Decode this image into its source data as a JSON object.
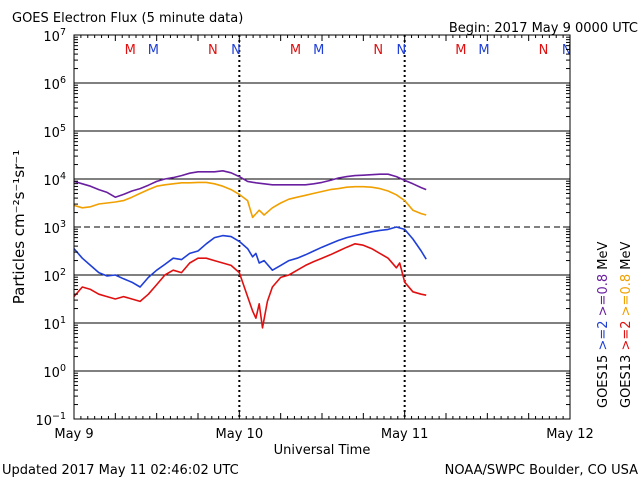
{
  "header": {
    "title": "GOES Electron Flux (5 minute data)",
    "begin": "Begin: 2017 May 9 0000 UTC"
  },
  "footer": {
    "updated": "Updated 2017 May 11 02:46:02 UTC",
    "credit": "NOAA/SWPC Boulder, CO USA"
  },
  "colors": {
    "goes15_2mev": "#1f3fd6",
    "goes13_2mev": "#e01010",
    "goes15_08mev": "#6a1fa0",
    "goes13_08mev": "#f0a000",
    "marker_m": "#e01010",
    "marker_n": "#1f3fd6"
  },
  "chart_data": {
    "type": "line",
    "title": "GOES Electron Flux (5 minute data)",
    "xlabel": "Universal Time",
    "ylabel": "Particles cm⁻²s⁻¹sr⁻¹",
    "x_unit": "days since 2017 May 9 0000 UTC",
    "xlim": [
      0,
      3
    ],
    "ylim_log10": [
      -1,
      7
    ],
    "x_ticks": [
      {
        "x": 0,
        "label": "May 9"
      },
      {
        "x": 1,
        "label": "May 10"
      },
      {
        "x": 2,
        "label": "May 11"
      },
      {
        "x": 3,
        "label": "May 12"
      }
    ],
    "y_ticks": [
      {
        "exp": 7,
        "base": "10",
        "sup": "7"
      },
      {
        "exp": 6,
        "base": "10",
        "sup": "6"
      },
      {
        "exp": 5,
        "base": "10",
        "sup": "5"
      },
      {
        "exp": 4,
        "base": "10",
        "sup": "4"
      },
      {
        "exp": 3,
        "base": "10",
        "sup": "3"
      },
      {
        "exp": 2,
        "base": "10",
        "sup": "2"
      },
      {
        "exp": 1,
        "base": "10",
        "sup": "1"
      },
      {
        "exp": 0,
        "base": "10",
        "sup": "0"
      },
      {
        "exp": -1,
        "base": "10",
        "sup": "−1"
      }
    ],
    "threshold_lines": [
      {
        "log10": 3,
        "style": "dashed"
      }
    ],
    "markers": [
      {
        "x": 0.34,
        "label": "M",
        "satellite": "GOES13"
      },
      {
        "x": 0.48,
        "label": "M",
        "satellite": "GOES15"
      },
      {
        "x": 0.84,
        "label": "N",
        "satellite": "GOES13"
      },
      {
        "x": 0.98,
        "label": "N",
        "satellite": "GOES15"
      },
      {
        "x": 1.34,
        "label": "M",
        "satellite": "GOES13"
      },
      {
        "x": 1.48,
        "label": "M",
        "satellite": "GOES15"
      },
      {
        "x": 1.84,
        "label": "N",
        "satellite": "GOES13"
      },
      {
        "x": 1.98,
        "label": "N",
        "satellite": "GOES15"
      },
      {
        "x": 2.34,
        "label": "M",
        "satellite": "GOES13"
      },
      {
        "x": 2.48,
        "label": "M",
        "satellite": "GOES15"
      },
      {
        "x": 2.84,
        "label": "N",
        "satellite": "GOES13"
      },
      {
        "x": 2.98,
        "label": "N",
        "satellite": "GOES15"
      }
    ],
    "legend": {
      "groups": [
        {
          "satellite": "GOES15",
          "items": [
            {
              "label": ">=2",
              "color": "#1f3fd6"
            },
            {
              "label": ">=0.8",
              "color": "#6a1fa0"
            }
          ]
        },
        {
          "satellite": "GOES13",
          "items": [
            {
              "label": ">=2",
              "color": "#e01010"
            },
            {
              "label": ">=0.8",
              "color": "#f0a000"
            }
          ]
        }
      ],
      "unit": "MeV"
    },
    "series": [
      {
        "name": "GOES15 >=0.8 MeV",
        "color": "#6a1fa0",
        "points": [
          [
            0.0,
            3.95
          ],
          [
            0.05,
            3.9
          ],
          [
            0.1,
            3.85
          ],
          [
            0.15,
            3.78
          ],
          [
            0.2,
            3.72
          ],
          [
            0.25,
            3.62
          ],
          [
            0.3,
            3.68
          ],
          [
            0.35,
            3.75
          ],
          [
            0.4,
            3.8
          ],
          [
            0.45,
            3.87
          ],
          [
            0.5,
            3.95
          ],
          [
            0.55,
            4.0
          ],
          [
            0.6,
            4.03
          ],
          [
            0.65,
            4.07
          ],
          [
            0.7,
            4.12
          ],
          [
            0.75,
            4.15
          ],
          [
            0.8,
            4.15
          ],
          [
            0.85,
            4.15
          ],
          [
            0.9,
            4.17
          ],
          [
            0.95,
            4.13
          ],
          [
            1.0,
            4.05
          ],
          [
            1.05,
            3.95
          ],
          [
            1.1,
            3.92
          ],
          [
            1.15,
            3.9
          ],
          [
            1.2,
            3.88
          ],
          [
            1.25,
            3.88
          ],
          [
            1.3,
            3.88
          ],
          [
            1.35,
            3.88
          ],
          [
            1.4,
            3.88
          ],
          [
            1.45,
            3.9
          ],
          [
            1.5,
            3.93
          ],
          [
            1.55,
            3.97
          ],
          [
            1.6,
            4.02
          ],
          [
            1.65,
            4.05
          ],
          [
            1.7,
            4.07
          ],
          [
            1.75,
            4.08
          ],
          [
            1.8,
            4.09
          ],
          [
            1.85,
            4.1
          ],
          [
            1.9,
            4.1
          ],
          [
            1.95,
            4.05
          ],
          [
            2.0,
            3.97
          ],
          [
            2.05,
            3.9
          ],
          [
            2.1,
            3.82
          ],
          [
            2.13,
            3.78
          ]
        ]
      },
      {
        "name": "GOES13 >=0.8 MeV",
        "color": "#f0a000",
        "points": [
          [
            0.0,
            3.45
          ],
          [
            0.05,
            3.4
          ],
          [
            0.1,
            3.42
          ],
          [
            0.15,
            3.48
          ],
          [
            0.2,
            3.5
          ],
          [
            0.25,
            3.52
          ],
          [
            0.3,
            3.55
          ],
          [
            0.35,
            3.62
          ],
          [
            0.4,
            3.7
          ],
          [
            0.45,
            3.78
          ],
          [
            0.5,
            3.85
          ],
          [
            0.55,
            3.88
          ],
          [
            0.6,
            3.9
          ],
          [
            0.65,
            3.92
          ],
          [
            0.7,
            3.92
          ],
          [
            0.75,
            3.93
          ],
          [
            0.8,
            3.93
          ],
          [
            0.85,
            3.9
          ],
          [
            0.9,
            3.85
          ],
          [
            0.95,
            3.78
          ],
          [
            1.0,
            3.68
          ],
          [
            1.05,
            3.55
          ],
          [
            1.08,
            3.2
          ],
          [
            1.12,
            3.35
          ],
          [
            1.15,
            3.25
          ],
          [
            1.2,
            3.4
          ],
          [
            1.25,
            3.5
          ],
          [
            1.3,
            3.58
          ],
          [
            1.35,
            3.62
          ],
          [
            1.4,
            3.66
          ],
          [
            1.45,
            3.7
          ],
          [
            1.5,
            3.74
          ],
          [
            1.55,
            3.78
          ],
          [
            1.6,
            3.8
          ],
          [
            1.65,
            3.83
          ],
          [
            1.7,
            3.84
          ],
          [
            1.75,
            3.84
          ],
          [
            1.8,
            3.83
          ],
          [
            1.85,
            3.8
          ],
          [
            1.9,
            3.75
          ],
          [
            1.95,
            3.67
          ],
          [
            2.0,
            3.55
          ],
          [
            2.05,
            3.35
          ],
          [
            2.1,
            3.28
          ],
          [
            2.13,
            3.25
          ]
        ]
      },
      {
        "name": "GOES15 >=2 MeV",
        "color": "#1f3fd6",
        "points": [
          [
            0.0,
            2.55
          ],
          [
            0.05,
            2.35
          ],
          [
            0.1,
            2.2
          ],
          [
            0.15,
            2.05
          ],
          [
            0.2,
            1.98
          ],
          [
            0.25,
            2.0
          ],
          [
            0.3,
            1.92
          ],
          [
            0.35,
            1.85
          ],
          [
            0.4,
            1.75
          ],
          [
            0.45,
            1.95
          ],
          [
            0.5,
            2.1
          ],
          [
            0.55,
            2.22
          ],
          [
            0.6,
            2.35
          ],
          [
            0.65,
            2.32
          ],
          [
            0.7,
            2.45
          ],
          [
            0.75,
            2.5
          ],
          [
            0.8,
            2.65
          ],
          [
            0.85,
            2.78
          ],
          [
            0.9,
            2.82
          ],
          [
            0.95,
            2.8
          ],
          [
            1.0,
            2.7
          ],
          [
            1.05,
            2.55
          ],
          [
            1.08,
            2.38
          ],
          [
            1.1,
            2.45
          ],
          [
            1.12,
            2.25
          ],
          [
            1.15,
            2.3
          ],
          [
            1.2,
            2.1
          ],
          [
            1.25,
            2.2
          ],
          [
            1.3,
            2.3
          ],
          [
            1.35,
            2.35
          ],
          [
            1.4,
            2.42
          ],
          [
            1.45,
            2.5
          ],
          [
            1.5,
            2.58
          ],
          [
            1.55,
            2.65
          ],
          [
            1.6,
            2.72
          ],
          [
            1.65,
            2.78
          ],
          [
            1.7,
            2.82
          ],
          [
            1.75,
            2.86
          ],
          [
            1.8,
            2.9
          ],
          [
            1.85,
            2.93
          ],
          [
            1.9,
            2.95
          ],
          [
            1.95,
            3.0
          ],
          [
            2.0,
            2.95
          ],
          [
            2.05,
            2.75
          ],
          [
            2.1,
            2.5
          ],
          [
            2.13,
            2.33
          ]
        ]
      },
      {
        "name": "GOES13 >=2 MeV",
        "color": "#e01010",
        "points": [
          [
            0.0,
            1.55
          ],
          [
            0.05,
            1.75
          ],
          [
            0.1,
            1.7
          ],
          [
            0.15,
            1.6
          ],
          [
            0.2,
            1.55
          ],
          [
            0.25,
            1.5
          ],
          [
            0.3,
            1.55
          ],
          [
            0.35,
            1.5
          ],
          [
            0.4,
            1.45
          ],
          [
            0.45,
            1.6
          ],
          [
            0.5,
            1.8
          ],
          [
            0.55,
            2.0
          ],
          [
            0.6,
            2.1
          ],
          [
            0.65,
            2.05
          ],
          [
            0.7,
            2.25
          ],
          [
            0.75,
            2.35
          ],
          [
            0.8,
            2.35
          ],
          [
            0.85,
            2.3
          ],
          [
            0.9,
            2.25
          ],
          [
            0.95,
            2.2
          ],
          [
            1.0,
            2.05
          ],
          [
            1.05,
            1.55
          ],
          [
            1.08,
            1.25
          ],
          [
            1.1,
            1.1
          ],
          [
            1.12,
            1.4
          ],
          [
            1.14,
            0.9
          ],
          [
            1.17,
            1.45
          ],
          [
            1.2,
            1.75
          ],
          [
            1.25,
            1.95
          ],
          [
            1.3,
            2.0
          ],
          [
            1.35,
            2.1
          ],
          [
            1.4,
            2.2
          ],
          [
            1.45,
            2.28
          ],
          [
            1.5,
            2.35
          ],
          [
            1.55,
            2.42
          ],
          [
            1.6,
            2.5
          ],
          [
            1.65,
            2.58
          ],
          [
            1.7,
            2.65
          ],
          [
            1.75,
            2.62
          ],
          [
            1.8,
            2.55
          ],
          [
            1.85,
            2.45
          ],
          [
            1.9,
            2.35
          ],
          [
            1.95,
            2.15
          ],
          [
            1.97,
            2.25
          ],
          [
            2.0,
            1.85
          ],
          [
            2.05,
            1.65
          ],
          [
            2.1,
            1.6
          ],
          [
            2.13,
            1.58
          ]
        ]
      }
    ]
  }
}
